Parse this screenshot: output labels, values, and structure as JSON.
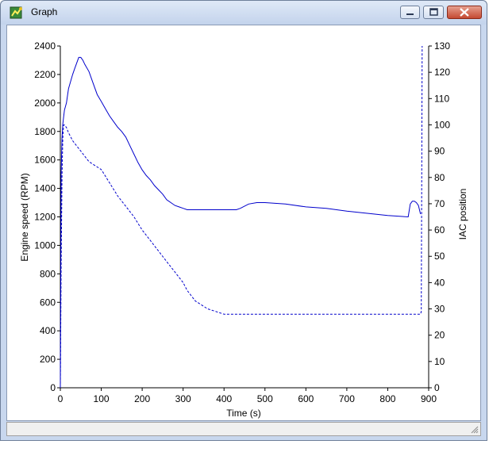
{
  "window": {
    "title": "Graph"
  },
  "colors": {
    "series": "#0000cc"
  },
  "chart_data": {
    "type": "line",
    "xlabel": "Time (s)",
    "ylabel": "Engine speed (RPM)",
    "y2label": "IAC position",
    "xlim": [
      0,
      900
    ],
    "ylim": [
      0,
      2400
    ],
    "y2lim": [
      0,
      130
    ],
    "xticks": [
      "0",
      "100",
      "200",
      "300",
      "400",
      "500",
      "600",
      "700",
      "800",
      "900"
    ],
    "yticks": [
      "0",
      "200",
      "400",
      "600",
      "800",
      "1000",
      "1200",
      "1400",
      "1600",
      "1800",
      "2000",
      "2200",
      "2400"
    ],
    "y2ticks": [
      "0",
      "10",
      "20",
      "30",
      "40",
      "50",
      "60",
      "70",
      "80",
      "90",
      "100",
      "110",
      "120",
      "130"
    ],
    "grid": false,
    "series": [
      {
        "style": "solid",
        "axis": "left",
        "x": [
          0,
          2,
          4,
          6,
          8,
          10,
          15,
          20,
          25,
          30,
          35,
          40,
          45,
          50,
          55,
          60,
          70,
          80,
          90,
          100,
          110,
          120,
          130,
          140,
          150,
          160,
          170,
          180,
          190,
          200,
          210,
          220,
          230,
          240,
          250,
          260,
          270,
          280,
          290,
          300,
          310,
          320,
          330,
          340,
          350,
          360,
          380,
          400,
          420,
          430,
          440,
          460,
          480,
          500,
          550,
          600,
          650,
          700,
          750,
          800,
          850,
          855,
          860,
          865,
          870,
          875,
          880
        ],
        "y": [
          0,
          1500,
          1750,
          1850,
          1900,
          1950,
          2000,
          2100,
          2150,
          2200,
          2240,
          2280,
          2320,
          2320,
          2300,
          2270,
          2220,
          2140,
          2060,
          2010,
          1960,
          1910,
          1870,
          1830,
          1800,
          1760,
          1700,
          1640,
          1580,
          1530,
          1490,
          1460,
          1420,
          1390,
          1360,
          1320,
          1300,
          1280,
          1270,
          1260,
          1250,
          1250,
          1250,
          1250,
          1250,
          1250,
          1250,
          1250,
          1250,
          1250,
          1260,
          1290,
          1300,
          1300,
          1290,
          1270,
          1260,
          1240,
          1225,
          1210,
          1200,
          1290,
          1310,
          1310,
          1300,
          1280,
          1220
        ]
      },
      {
        "style": "dashed",
        "axis": "right",
        "x": [
          0,
          2,
          4,
          6,
          8,
          10,
          15,
          20,
          30,
          40,
          50,
          60,
          70,
          80,
          90,
          100,
          120,
          140,
          160,
          180,
          200,
          220,
          240,
          260,
          280,
          300,
          310,
          320,
          330,
          340,
          360,
          400,
          500,
          600,
          700,
          800,
          860,
          870,
          875,
          880,
          882,
          884
        ],
        "y": [
          0,
          45,
          80,
          95,
          100,
          100,
          99,
          97,
          94,
          92,
          90,
          88,
          86,
          85,
          84,
          83,
          78,
          73,
          69,
          65,
          60,
          56,
          52,
          48,
          44,
          40,
          37,
          35,
          33,
          32,
          30,
          28,
          28,
          28,
          28,
          28,
          28,
          28,
          28,
          28,
          29,
          130
        ]
      }
    ]
  }
}
